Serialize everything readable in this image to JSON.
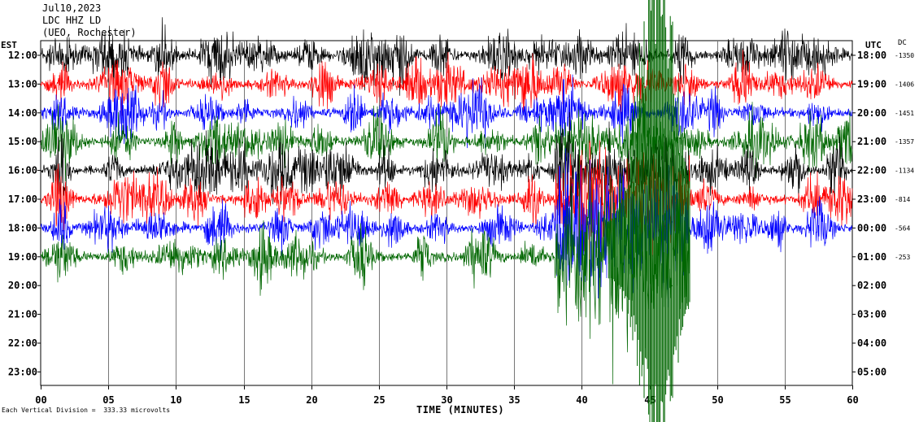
{
  "header": {
    "date": "Jul10,2023",
    "station": "LDC HHZ LD",
    "location": "(UEO, Rochester)"
  },
  "axes": {
    "left_unit": "EST",
    "right_unit": "UTC",
    "dc_label": "DC",
    "x_title": "TIME (MINUTES)",
    "scale_note": "Each Vertical Division =  333.33 microvolts"
  },
  "chart_data": {
    "type": "line",
    "title": "",
    "xlabel": "TIME (MINUTES)",
    "xlim": [
      0,
      60
    ],
    "x_ticks": [
      "00",
      "05",
      "10",
      "15",
      "20",
      "25",
      "30",
      "35",
      "40",
      "45",
      "50",
      "55",
      "60"
    ],
    "left_ticks": [
      "12:00",
      "13:00",
      "14:00",
      "15:00",
      "16:00",
      "17:00",
      "18:00",
      "19:00",
      "20:00",
      "21:00",
      "22:00",
      "23:00"
    ],
    "right_ticks": [
      "18:00",
      "19:00",
      "20:00",
      "21:00",
      "22:00",
      "23:00",
      "00:00",
      "01:00",
      "02:00",
      "03:00",
      "04:00",
      "05:00"
    ],
    "dc_offsets": [
      -1350,
      -1406,
      -1451,
      -1357,
      -1134,
      -814,
      -564,
      -253
    ],
    "trace_colors": [
      "#000000",
      "#ff0000",
      "#0000ff",
      "#006600"
    ],
    "traces": [
      {
        "row": 0,
        "start_min": 0,
        "end_min": 60,
        "amplitude": "moderate"
      },
      {
        "row": 1,
        "start_min": 0,
        "end_min": 60,
        "amplitude": "moderate"
      },
      {
        "row": 2,
        "start_min": 0,
        "end_min": 60,
        "amplitude": "moderate"
      },
      {
        "row": 3,
        "start_min": 0,
        "end_min": 60,
        "amplitude": "moderate"
      },
      {
        "row": 4,
        "start_min": 0,
        "end_min": 60,
        "amplitude": "moderate"
      },
      {
        "row": 5,
        "start_min": 0,
        "end_min": 60,
        "amplitude": "moderate"
      },
      {
        "row": 6,
        "start_min": 0,
        "end_min": 60,
        "amplitude": "moderate"
      },
      {
        "row": 7,
        "start_min": 0,
        "end_min": 48,
        "amplitude": "moderate"
      }
    ],
    "large_event": {
      "start_min": 42,
      "end_min": 48,
      "color": "#006600"
    }
  }
}
